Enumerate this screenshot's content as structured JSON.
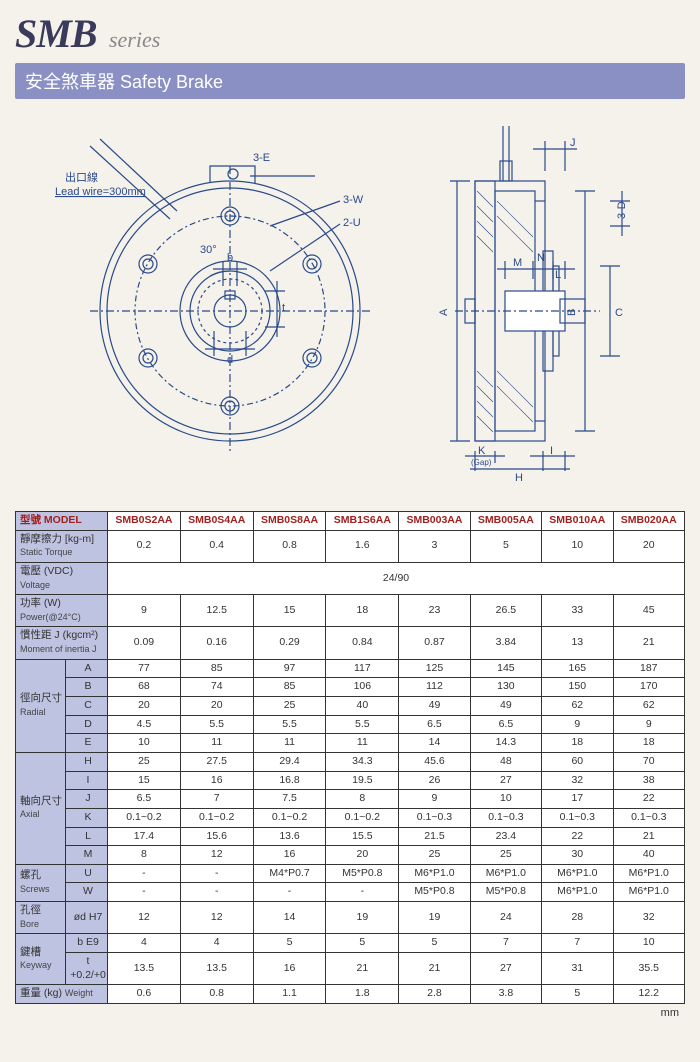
{
  "header": {
    "main_title": "SMB",
    "series": "series",
    "subtitle_cn": "安全煞車器",
    "subtitle_en": "Safety Brake"
  },
  "diagram": {
    "lead_wire_cn": "出口線",
    "lead_wire_en": "Lead wire=300mm",
    "label_3E": "3-E",
    "label_3W": "3-W",
    "label_2U": "2-U",
    "angle": "30°",
    "dim_b": "b",
    "dim_t": "t",
    "dim_d": "d",
    "dim_A": "A",
    "dim_B": "B",
    "dim_C": "C",
    "dim_D": "3-D",
    "dim_H": "H",
    "dim_I": "I",
    "dim_J": "J",
    "dim_K": "K",
    "dim_K_sub": "(Gap)",
    "dim_L": "L",
    "dim_M": "M",
    "dim_N": "N",
    "stroke": "#2a4a8a",
    "fill_bg": "#ffffff"
  },
  "table": {
    "model_label_cn": "型號",
    "model_label_en": "MODEL",
    "models": [
      "SMB0S2AA",
      "SMB0S4AA",
      "SMB0S8AA",
      "SMB1S6AA",
      "SMB003AA",
      "SMB005AA",
      "SMB010AA",
      "SMB020AA"
    ],
    "rows": [
      {
        "label_cn": "靜摩擦力 [kg-m]",
        "label_en": "Static Torque",
        "values": [
          "0.2",
          "0.4",
          "0.8",
          "1.6",
          "3",
          "5",
          "10",
          "20"
        ]
      },
      {
        "label_cn": "電壓 (VDC)",
        "label_en": "Voltage",
        "span_value": "24/90"
      },
      {
        "label_cn": "功率 (W)",
        "label_en": "Power(@24°C)",
        "values": [
          "9",
          "12.5",
          "15",
          "18",
          "23",
          "26.5",
          "33",
          "45"
        ]
      },
      {
        "label_cn": "慣性距 J (kgcm²)",
        "label_en": "Moment of inertia J",
        "values": [
          "0.09",
          "0.16",
          "0.29",
          "0.84",
          "0.87",
          "3.84",
          "13",
          "21"
        ]
      }
    ],
    "radial": {
      "group_cn": "徑向尺寸",
      "group_en": "Radial",
      "items": [
        {
          "k": "A",
          "v": [
            "77",
            "85",
            "97",
            "117",
            "125",
            "145",
            "165",
            "187"
          ]
        },
        {
          "k": "B",
          "v": [
            "68",
            "74",
            "85",
            "106",
            "112",
            "130",
            "150",
            "170"
          ]
        },
        {
          "k": "C",
          "v": [
            "20",
            "20",
            "25",
            "40",
            "49",
            "49",
            "62",
            "62"
          ]
        },
        {
          "k": "D",
          "v": [
            "4.5",
            "5.5",
            "5.5",
            "5.5",
            "6.5",
            "6.5",
            "9",
            "9"
          ]
        },
        {
          "k": "E",
          "v": [
            "10",
            "11",
            "11",
            "11",
            "14",
            "14.3",
            "18",
            "18"
          ]
        }
      ]
    },
    "axial": {
      "group_cn": "軸向尺寸",
      "group_en": "Axial",
      "items": [
        {
          "k": "H",
          "v": [
            "25",
            "27.5",
            "29.4",
            "34.3",
            "45.6",
            "48",
            "60",
            "70"
          ]
        },
        {
          "k": "I",
          "v": [
            "15",
            "16",
            "16.8",
            "19.5",
            "26",
            "27",
            "32",
            "38"
          ]
        },
        {
          "k": "J",
          "v": [
            "6.5",
            "7",
            "7.5",
            "8",
            "9",
            "10",
            "17",
            "22"
          ]
        },
        {
          "k": "K",
          "v": [
            "0.1~0.2",
            "0.1~0.2",
            "0.1~0.2",
            "0.1~0.2",
            "0.1~0.3",
            "0.1~0.3",
            "0.1~0.3",
            "0.1~0.3"
          ]
        },
        {
          "k": "L",
          "v": [
            "17.4",
            "15.6",
            "13.6",
            "15.5",
            "21.5",
            "23.4",
            "22",
            "21"
          ]
        },
        {
          "k": "M",
          "v": [
            "8",
            "12",
            "16",
            "20",
            "25",
            "25",
            "30",
            "40"
          ]
        }
      ]
    },
    "screws": {
      "group_cn": "螺孔",
      "group_en": "Screws",
      "items": [
        {
          "k": "U",
          "v": [
            "-",
            "-",
            "M4*P0.7",
            "M5*P0.8",
            "M6*P1.0",
            "M6*P1.0",
            "M6*P1.0",
            "M6*P1.0"
          ]
        },
        {
          "k": "W",
          "v": [
            "-",
            "-",
            "-",
            "-",
            "M5*P0.8",
            "M5*P0.8",
            "M6*P1.0",
            "M6*P1.0"
          ]
        }
      ]
    },
    "bore": {
      "group_cn": "孔徑",
      "group_en": "Bore",
      "items": [
        {
          "k": "ød H7",
          "v": [
            "12",
            "12",
            "14",
            "19",
            "19",
            "24",
            "28",
            "32"
          ]
        }
      ]
    },
    "keyway": {
      "group_cn": "鍵槽",
      "group_en": "Keyway",
      "items": [
        {
          "k": "b E9",
          "v": [
            "4",
            "4",
            "5",
            "5",
            "5",
            "7",
            "7",
            "10"
          ]
        },
        {
          "k": "t +0.2/+0",
          "v": [
            "13.5",
            "13.5",
            "16",
            "21",
            "21",
            "27",
            "31",
            "35.5"
          ]
        }
      ]
    },
    "weight": {
      "group_cn": "重量 (kg)",
      "group_en": "Weight",
      "values": [
        "0.6",
        "0.8",
        "1.1",
        "1.8",
        "2.8",
        "3.8",
        "5",
        "12.2"
      ]
    },
    "unit": "mm"
  }
}
